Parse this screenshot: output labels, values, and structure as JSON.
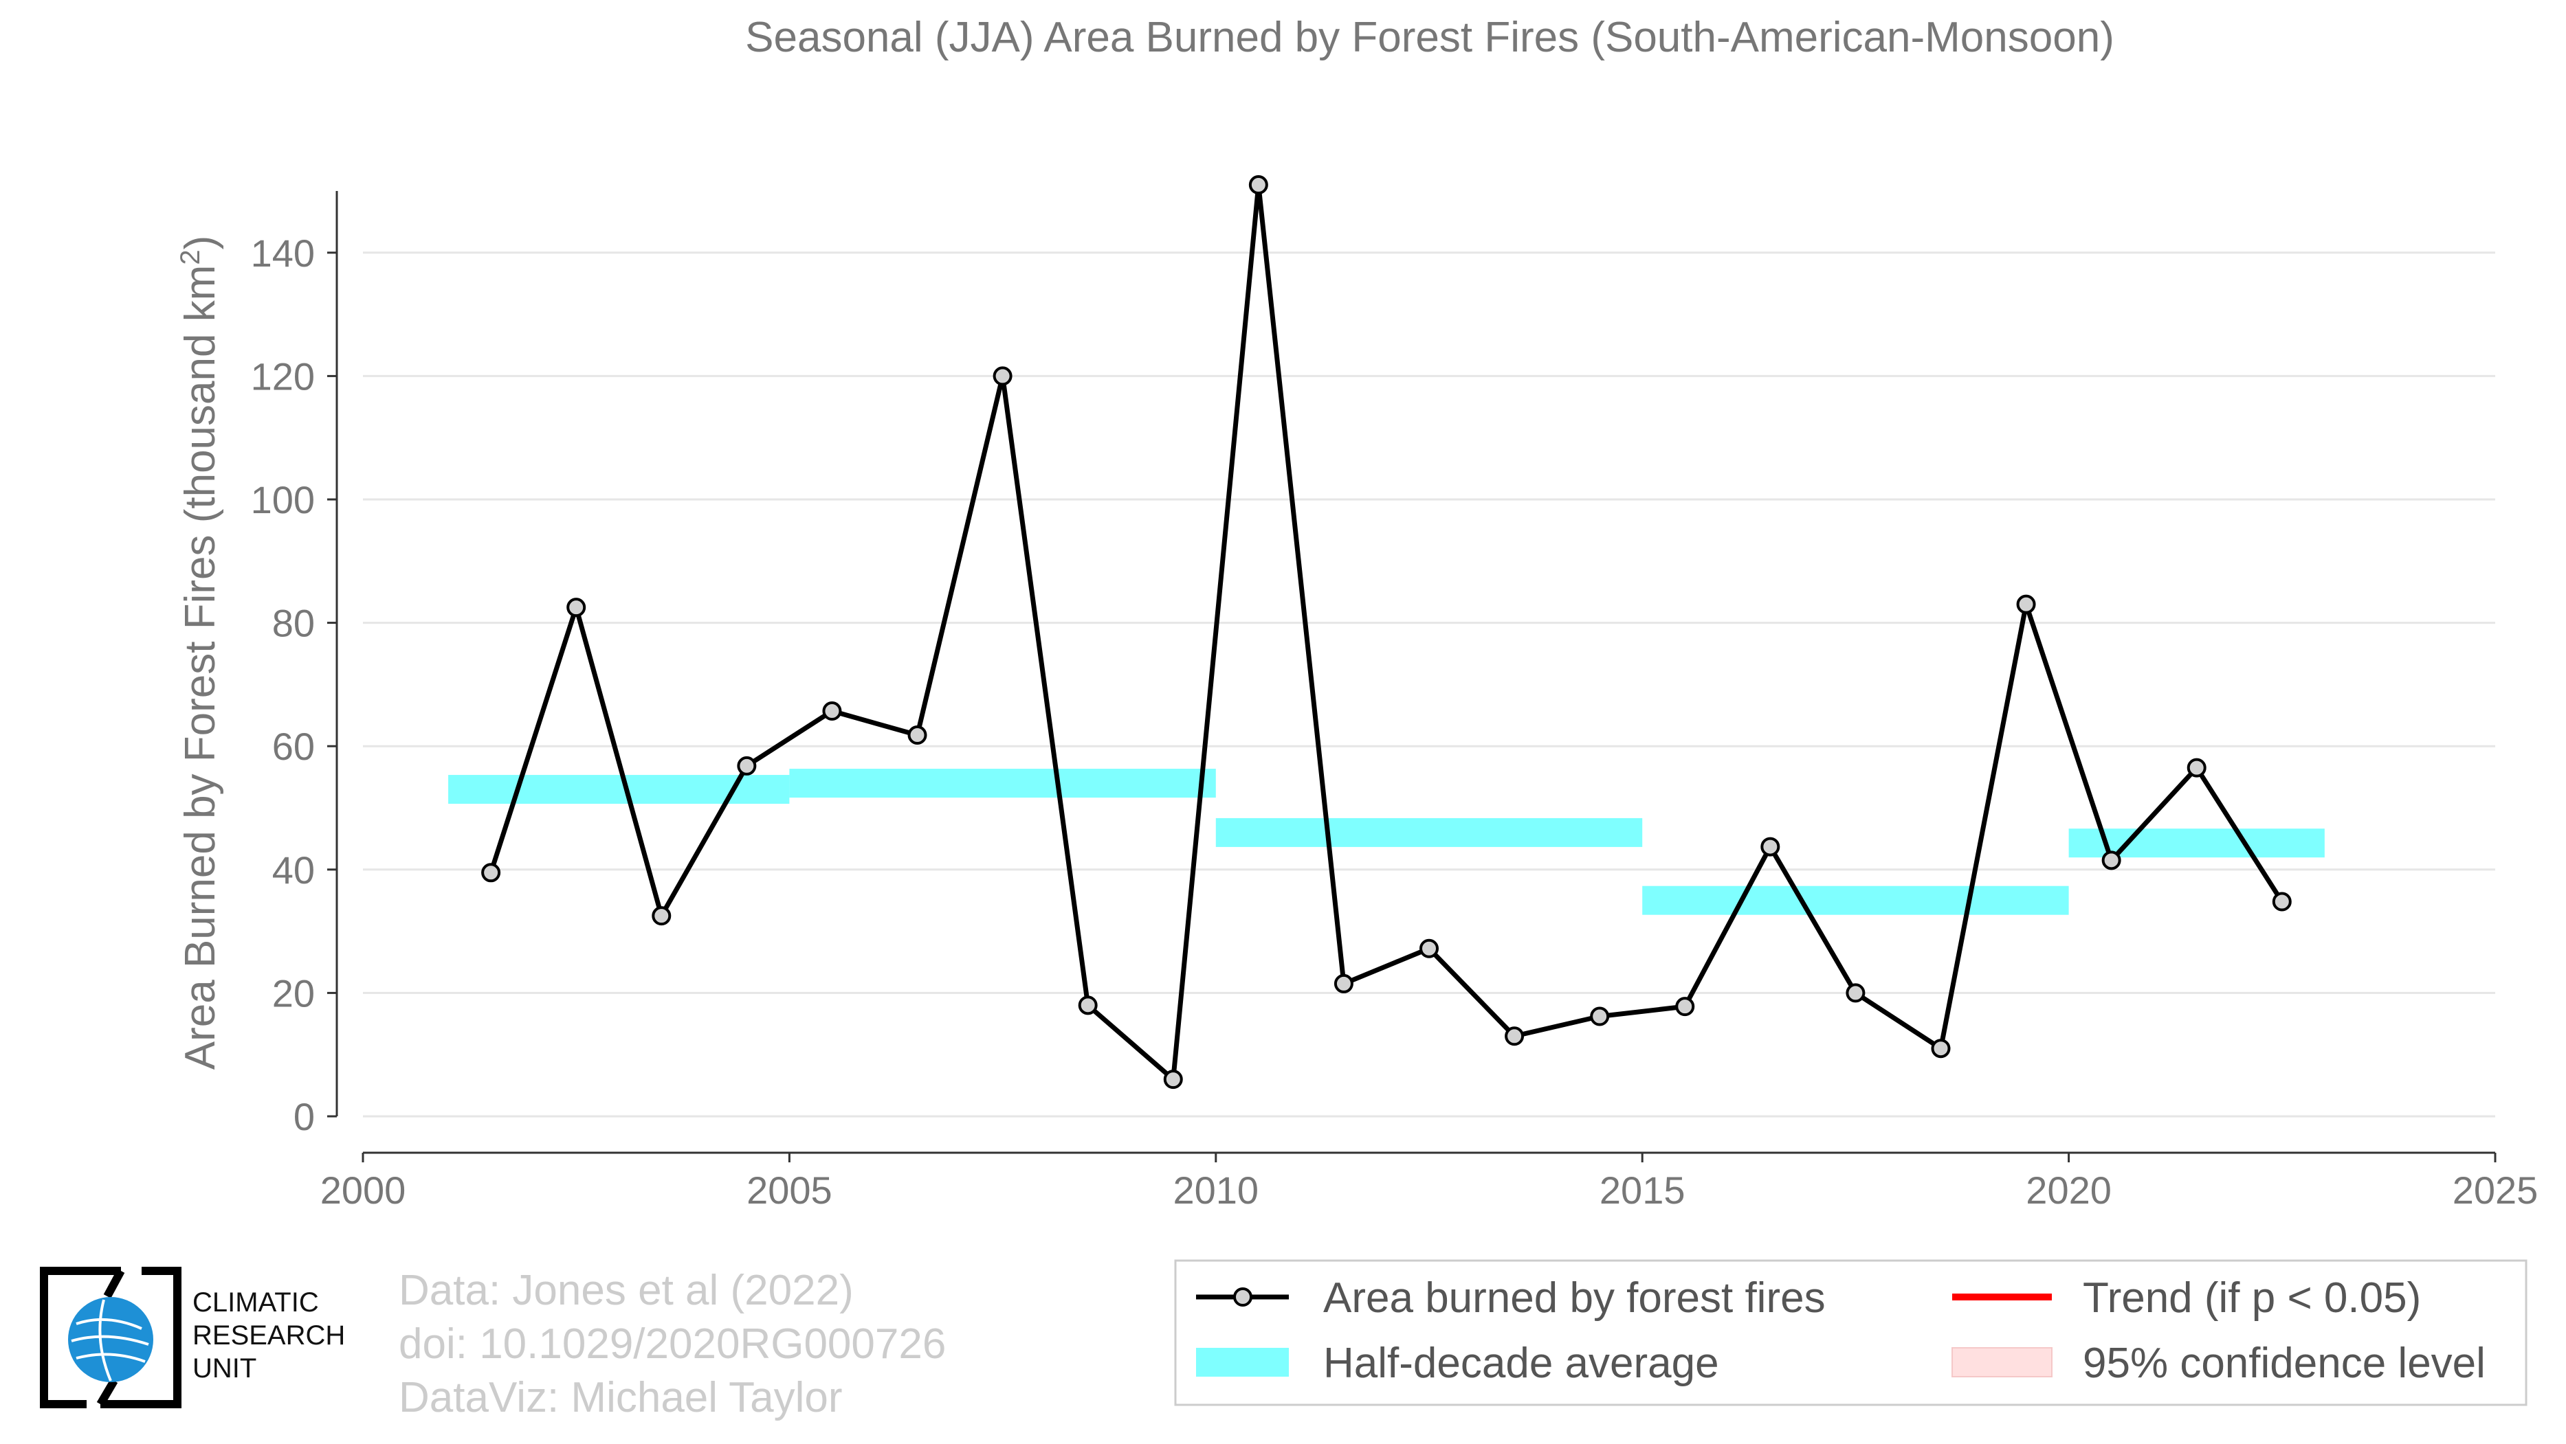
{
  "chart_data": {
    "type": "line",
    "title": "Seasonal (JJA) Area Burned by Forest Fires (South-American-Monsoon)",
    "ylabel": "Area Burned by Forest Fires (thousand km",
    "ylabel_sup": "2",
    "ylabel_close": ")",
    "xlim": [
      2000,
      2025
    ],
    "ylim": [
      0,
      150
    ],
    "xticks": [
      2000,
      2005,
      2010,
      2015,
      2020,
      2025
    ],
    "yticks": [
      0,
      20,
      40,
      60,
      80,
      100,
      120,
      140
    ],
    "grid": "horizontal",
    "series": [
      {
        "name": "Area burned by forest fires",
        "color": "#000000",
        "marker_fill": "#d3d3d3",
        "x": [
          2001.5,
          2002.5,
          2003.5,
          2004.5,
          2005.5,
          2006.5,
          2007.5,
          2008.5,
          2009.5,
          2010.5,
          2011.5,
          2012.5,
          2013.5,
          2014.5,
          2015.5,
          2016.5,
          2017.5,
          2018.5,
          2019.5,
          2020.5,
          2021.5,
          2022.5
        ],
        "values": [
          39.5,
          82.5,
          32.5,
          56.8,
          65.7,
          61.8,
          120.0,
          18.0,
          6.0,
          151.0,
          21.5,
          27.2,
          13.0,
          16.2,
          17.8,
          43.7,
          20.0,
          11.0,
          83.0,
          41.5,
          56.5,
          34.8
        ]
      }
    ],
    "half_decade_averages": {
      "name": "Half-decade average",
      "color": "#7fffff",
      "segments": [
        {
          "x_start": 2001,
          "x_end": 2005,
          "value": 53.0
        },
        {
          "x_start": 2005,
          "x_end": 2010,
          "value": 54.0
        },
        {
          "x_start": 2010,
          "x_end": 2015,
          "value": 46.0
        },
        {
          "x_start": 2015,
          "x_end": 2020,
          "value": 35.0
        },
        {
          "x_start": 2020,
          "x_end": 2023,
          "value": 44.3
        }
      ]
    },
    "legend": {
      "placement": "bottom-right",
      "items": [
        {
          "label": "Area burned by forest fires",
          "kind": "line-marker",
          "color": "#000000"
        },
        {
          "label": "Trend (if p < 0.05)",
          "kind": "line",
          "color": "#ff0000"
        },
        {
          "label": "Half-decade average",
          "kind": "band",
          "color": "#7fffff"
        },
        {
          "label": "95% confidence level",
          "kind": "band",
          "color": "#ffe0e0"
        }
      ]
    }
  },
  "credits": {
    "line1": "Data: Jones et al (2022)",
    "line2": "doi: 10.1029/2020RG000726",
    "line3": "DataViz: Michael Taylor"
  },
  "logo": {
    "line1": "CLIMATIC",
    "line2": "RESEARCH",
    "line3": "UNIT",
    "globe_color": "#1e90d6"
  }
}
